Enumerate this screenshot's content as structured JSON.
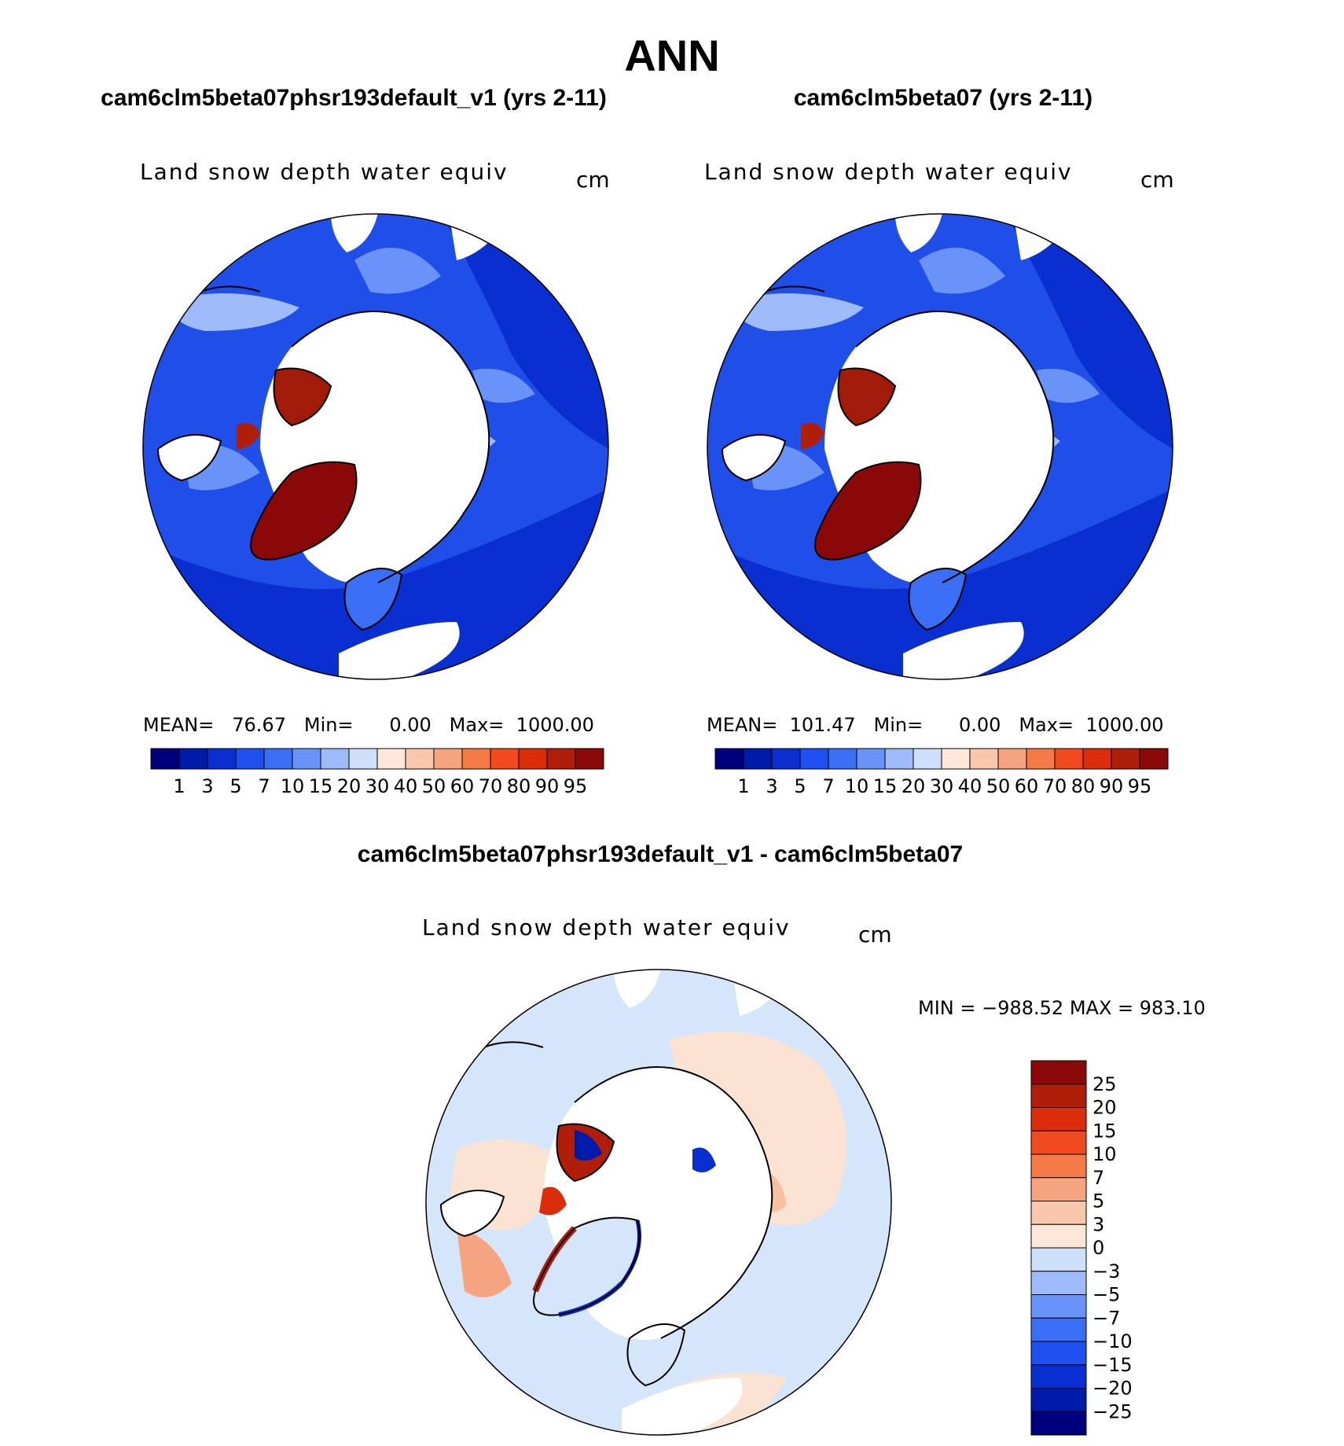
{
  "title": "ANN",
  "difference_title": "cam6clm5beta07phsr193default_v1 - cam6clm5beta07",
  "panels": [
    {
      "case_title": "cam6clm5beta07phsr193default_v1 (yrs 2-11)",
      "variable": "Land snow depth water equiv",
      "units": "cm",
      "mean_label": "MEAN=",
      "mean": "76.67",
      "min_label": "Min=",
      "min": "0.00",
      "max_label": "Max=",
      "max": "1000.00"
    },
    {
      "case_title": "cam6clm5beta07 (yrs 2-11)",
      "variable": "Land snow depth water equiv",
      "units": "cm",
      "mean_label": "MEAN=",
      "mean": "101.47",
      "min_label": "Min=",
      "min": "0.00",
      "max_label": "Max=",
      "max": "1000.00"
    }
  ],
  "difference_panel": {
    "variable": "Land snow depth water equiv",
    "units": "cm",
    "minmax_text": "MIN = −988.52 MAX = 983.10"
  },
  "colorbars": {
    "absolute": {
      "colors": [
        "#00007f",
        "#001aaa",
        "#0a2fd0",
        "#1f50f0",
        "#3a6ef5",
        "#6a93f8",
        "#9fbaf9",
        "#cddff9",
        "#fbe6d8",
        "#f8c7ac",
        "#f6a47f",
        "#f57a47",
        "#f24a1f",
        "#db2c0c",
        "#b01d08",
        "#8a0808"
      ],
      "labels": [
        "1",
        "3",
        "5",
        "7",
        "10",
        "15",
        "20",
        "30",
        "40",
        "50",
        "60",
        "70",
        "80",
        "90",
        "95"
      ]
    },
    "difference": {
      "colors_top_to_bottom": [
        "#8a0808",
        "#b01d08",
        "#db2c0c",
        "#f24a1f",
        "#f57a47",
        "#f6a47f",
        "#f8c7ac",
        "#fbe6d8",
        "#cddff9",
        "#9fbaf9",
        "#6a93f8",
        "#3a6ef5",
        "#1f50f0",
        "#0a2fd0",
        "#001aaa",
        "#00007f"
      ],
      "labels_top_to_bottom": [
        "25",
        "20",
        "15",
        "10",
        "7",
        "5",
        "3",
        "0",
        "−3",
        "−5",
        "−7",
        "−10",
        "−15",
        "−20",
        "−25"
      ]
    }
  }
}
